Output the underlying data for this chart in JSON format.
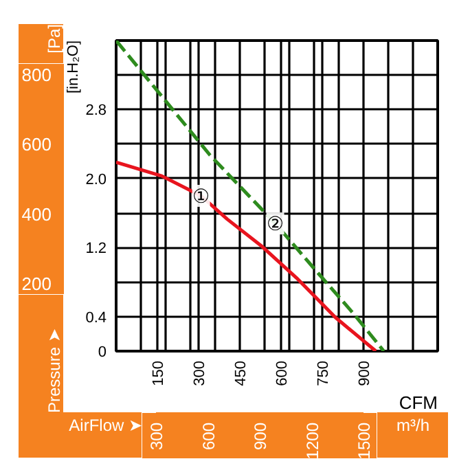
{
  "chart_data": {
    "type": "line",
    "xlabel": "CFM",
    "ylabel": "[in.H₂O]",
    "y2label": "[Pa]",
    "x2label": "m³/h",
    "annotations": [
      "Pressure ➤",
      "AirFlow ➤"
    ],
    "xlim": [
      0,
      1170
    ],
    "xticks": [
      {
        "value": 90,
        "label": null
      },
      {
        "value": 150,
        "label": "150"
      },
      {
        "value": 180,
        "label": null
      },
      {
        "value": 270,
        "label": null
      },
      {
        "value": 300,
        "label": "300"
      },
      {
        "value": 360,
        "label": null
      },
      {
        "value": 450,
        "label": "450"
      },
      {
        "value": 540,
        "label": null
      },
      {
        "value": 600,
        "label": "600"
      },
      {
        "value": 630,
        "label": null
      },
      {
        "value": 720,
        "label": null
      },
      {
        "value": 750,
        "label": "750"
      },
      {
        "value": 810,
        "label": null
      },
      {
        "value": 900,
        "label": "900"
      },
      {
        "value": 990,
        "label": null
      },
      {
        "value": 1080,
        "label": null
      }
    ],
    "ylim": [
      0,
      3.6
    ],
    "yticks": [
      {
        "value": 0,
        "label": "0"
      },
      {
        "value": 0.4,
        "label": "0.4"
      },
      {
        "value": 0.8,
        "label": null
      },
      {
        "value": 1.2,
        "label": "1.2"
      },
      {
        "value": 1.6,
        "label": null
      },
      {
        "value": 2.0,
        "label": "2.0"
      },
      {
        "value": 2.4,
        "label": null
      },
      {
        "value": 2.8,
        "label": "2.8"
      },
      {
        "value": 3.2,
        "label": null
      }
    ],
    "y2lim": [
      200,
      800
    ],
    "y2ticks": [
      200,
      400,
      600,
      800
    ],
    "x2lim": [
      300,
      1500
    ],
    "x2ticks": [
      300,
      600,
      900,
      1200,
      1500
    ],
    "grid": true,
    "marker": "none",
    "series": [
      {
        "name": "①",
        "color": "#e8141e",
        "line_style": "solid",
        "x": [
          0,
          166,
          309,
          404,
          532,
          656,
          798,
          945
        ],
        "values": [
          2.19,
          2.03,
          1.8,
          1.53,
          1.21,
          0.85,
          0.39,
          0
        ]
      },
      {
        "name": "②",
        "color": "#2e8b1e",
        "line_style": "dashed",
        "x": [
          0,
          342,
          579,
          736,
          865,
          974
        ],
        "values": [
          3.6,
          2.27,
          1.48,
          0.9,
          0.43,
          0
        ]
      }
    ]
  }
}
